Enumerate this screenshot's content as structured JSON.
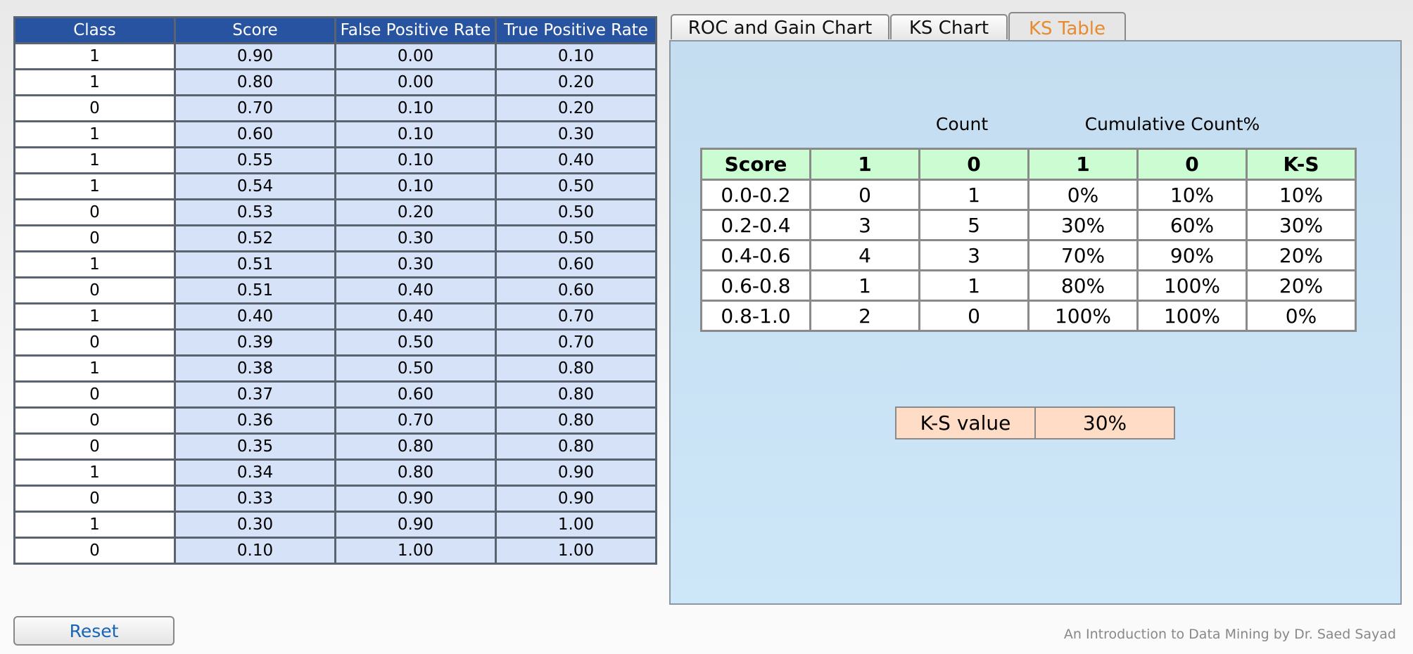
{
  "data_table": {
    "headers": [
      "Class",
      "Score",
      "False Positive Rate",
      "True Positive Rate"
    ],
    "rows": [
      [
        "1",
        "0.90",
        "0.00",
        "0.10"
      ],
      [
        "1",
        "0.80",
        "0.00",
        "0.20"
      ],
      [
        "0",
        "0.70",
        "0.10",
        "0.20"
      ],
      [
        "1",
        "0.60",
        "0.10",
        "0.30"
      ],
      [
        "1",
        "0.55",
        "0.10",
        "0.40"
      ],
      [
        "1",
        "0.54",
        "0.10",
        "0.50"
      ],
      [
        "0",
        "0.53",
        "0.20",
        "0.50"
      ],
      [
        "0",
        "0.52",
        "0.30",
        "0.50"
      ],
      [
        "1",
        "0.51",
        "0.30",
        "0.60"
      ],
      [
        "0",
        "0.51",
        "0.40",
        "0.60"
      ],
      [
        "1",
        "0.40",
        "0.40",
        "0.70"
      ],
      [
        "0",
        "0.39",
        "0.50",
        "0.70"
      ],
      [
        "1",
        "0.38",
        "0.50",
        "0.80"
      ],
      [
        "0",
        "0.37",
        "0.60",
        "0.80"
      ],
      [
        "0",
        "0.36",
        "0.70",
        "0.80"
      ],
      [
        "0",
        "0.35",
        "0.80",
        "0.80"
      ],
      [
        "1",
        "0.34",
        "0.80",
        "0.90"
      ],
      [
        "0",
        "0.33",
        "0.90",
        "0.90"
      ],
      [
        "1",
        "0.30",
        "0.90",
        "1.00"
      ],
      [
        "0",
        "0.10",
        "1.00",
        "1.00"
      ]
    ]
  },
  "reset_label": "Reset",
  "tabs": [
    {
      "label": "ROC and Gain Chart",
      "active": false
    },
    {
      "label": "KS Chart",
      "active": false
    },
    {
      "label": "KS Table",
      "active": true
    }
  ],
  "ks_table": {
    "group_headers": {
      "count": "Count",
      "cumulative": "Cumulative Count%"
    },
    "headers": [
      "Score",
      "1",
      "0",
      "1",
      "0",
      "K-S"
    ],
    "rows": [
      [
        "0.0-0.2",
        "0",
        "1",
        "0%",
        "10%",
        "10%"
      ],
      [
        "0.2-0.4",
        "3",
        "5",
        "30%",
        "60%",
        "30%"
      ],
      [
        "0.4-0.6",
        "4",
        "3",
        "70%",
        "90%",
        "20%"
      ],
      [
        "0.6-0.8",
        "1",
        "1",
        "80%",
        "100%",
        "20%"
      ],
      [
        "0.8-1.0",
        "2",
        "0",
        "100%",
        "100%",
        "0%"
      ]
    ]
  },
  "ks_value": {
    "label": "K-S value",
    "value": "30%"
  },
  "footer": "An Introduction to Data Mining by Dr. Saed Sayad",
  "colors": {
    "header_blue": "#2853a0",
    "cell_blue": "#d6e2f7",
    "ks_header_green": "#ccfdd2",
    "ks_value_peach": "#ffdcc6",
    "active_tab_text": "#e88a2e",
    "panel_bg": "#c4ddf0"
  }
}
